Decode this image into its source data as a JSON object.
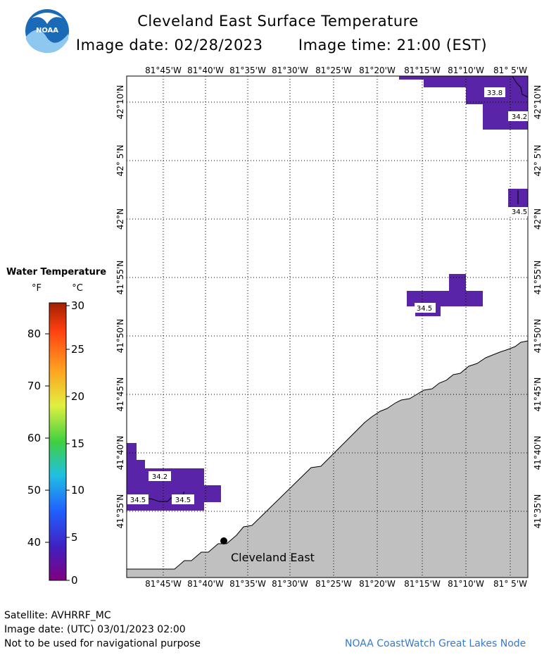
{
  "header": {
    "logo_text": "NOAA",
    "title": "Cleveland East Surface Temperature",
    "date_label": "Image date:",
    "date_value": "02/28/2023",
    "time_label": "Image time:",
    "time_value": "21:00 (EST)"
  },
  "map": {
    "lon_labels": [
      "81°45'W",
      "81°40'W",
      "81°35'W",
      "81°30'W",
      "81°25'W",
      "81°20'W",
      "81°15'W",
      "81°10'W",
      "81° 5'W"
    ],
    "lat_labels": [
      "42°10'N",
      "42° 5'N",
      "42°N",
      "41°55'N",
      "41°50'N",
      "41°45'N",
      "41°40'N",
      "41°35'N"
    ],
    "station_label": "Cleveland East",
    "temperature_labels": [
      "33.8",
      "34.2",
      "34.5",
      "34.5",
      "34.2",
      "34.5",
      "34.5"
    ],
    "land_color": "#c0c0c0",
    "water_color": "#ffffff",
    "cold_pixel_color": "#5a24a8"
  },
  "legend": {
    "title": "Water Temperature",
    "unit_f": "°F",
    "unit_c": "°C",
    "f_ticks": [
      "80",
      "70",
      "60",
      "50",
      "40"
    ],
    "c_ticks": [
      "30",
      "25",
      "20",
      "15",
      "10",
      "5",
      "0"
    ]
  },
  "footer": {
    "satellite": "Satellite: AVHRRF_MC",
    "utc_date": "Image date: (UTC) 03/01/2023  02:00",
    "disclaimer": "Not to be used for navigational purpose",
    "credit": "NOAA CoastWatch Great Lakes Node"
  }
}
